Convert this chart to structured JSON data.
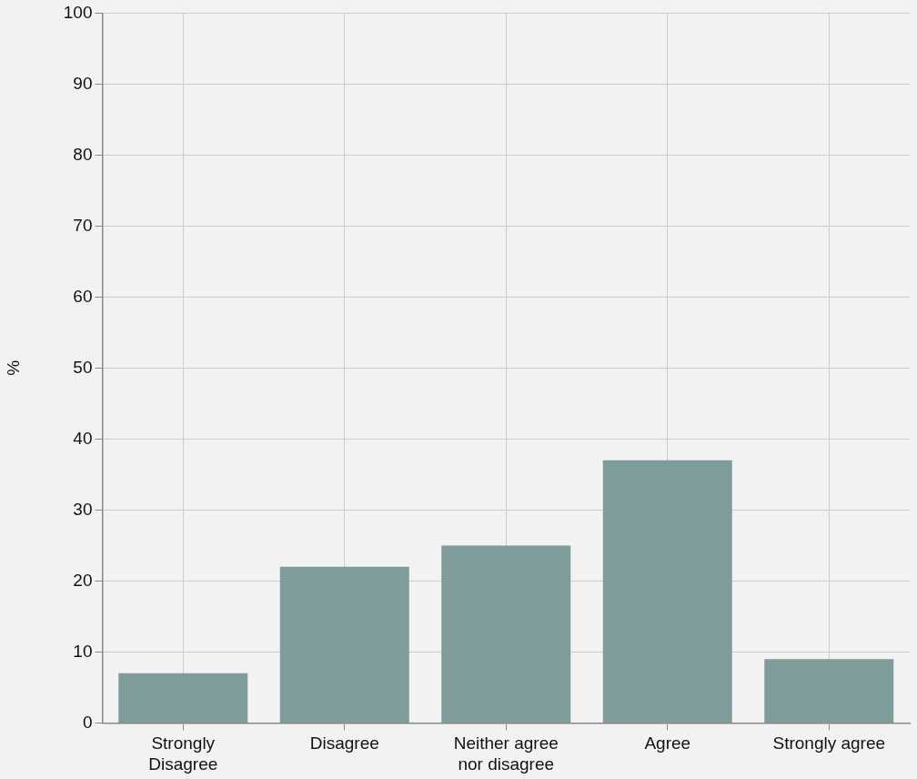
{
  "chart_data": {
    "type": "bar",
    "ylabel": "%",
    "categories": [
      "Strongly Disagree",
      "Disagree",
      "Neither agree nor disagree",
      "Agree",
      "Strongly agree"
    ],
    "values": [
      7,
      22,
      25,
      37,
      9
    ],
    "color": "#7f9c9a",
    "ylim": [
      0,
      100
    ],
    "yticks": [
      0,
      10,
      20,
      30,
      40,
      50,
      60,
      70,
      80,
      90,
      100
    ],
    "grid": true
  }
}
